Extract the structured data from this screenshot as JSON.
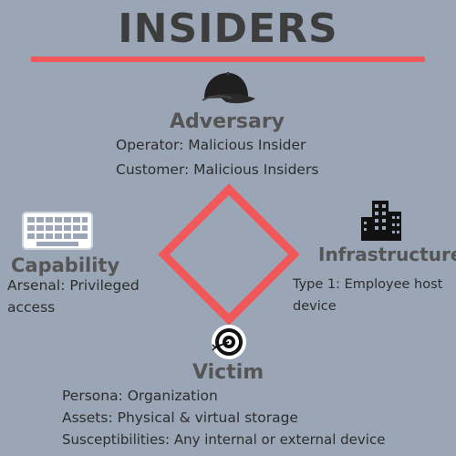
{
  "title": "INSIDERS",
  "colors": {
    "background": "#9aa6b5",
    "accent": "#f2575a",
    "text": "#3d3d3d"
  },
  "adversary": {
    "icon": "cap-icon",
    "heading": "Adversary",
    "lines": [
      "Operator: Malicious Insider",
      "Customer: Malicious Insiders"
    ]
  },
  "capability": {
    "icon": "keyboard-icon",
    "heading": "Capability",
    "lines": [
      "Arsenal: Privileged",
      "access"
    ]
  },
  "infrastructure": {
    "icon": "buildings-icon",
    "heading": "Infrastructure",
    "lines": [
      "Type 1: Employee host",
      "device"
    ]
  },
  "victim": {
    "icon": "target-icon",
    "heading": "Victim",
    "lines": [
      "Persona: Organization",
      "Assets: Physical & virtual storage",
      "Susceptibilities: Any internal or external device"
    ]
  }
}
